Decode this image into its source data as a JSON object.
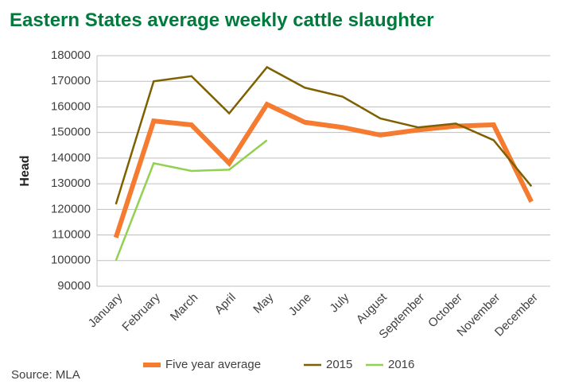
{
  "chart_data": {
    "type": "line",
    "title": "Eastern States average weekly cattle slaughter",
    "y_label": "Head",
    "source": "Source: MLA",
    "categories": [
      "January",
      "February",
      "March",
      "April",
      "May",
      "June",
      "July",
      "August",
      "September",
      "October",
      "November",
      "December"
    ],
    "series": [
      {
        "name": "Five year average",
        "color": "#f47b30",
        "values": [
          109000,
          154500,
          153000,
          138000,
          161000,
          154000,
          152000,
          149000,
          151000,
          152500,
          153000,
          123000
        ]
      },
      {
        "name": "2015",
        "color": "#7f6000",
        "values": [
          122000,
          170000,
          172000,
          157500,
          175500,
          167500,
          164000,
          155500,
          152000,
          153500,
          147000,
          129000
        ]
      },
      {
        "name": "2016",
        "color": "#92d050",
        "values": [
          100000,
          138000,
          135000,
          135500,
          147000,
          null,
          null,
          null,
          null,
          null,
          null,
          null
        ]
      }
    ],
    "ylim": [
      90000,
      180000
    ],
    "yticks": [
      90000,
      100000,
      110000,
      120000,
      130000,
      140000,
      150000,
      160000,
      170000,
      180000
    ],
    "grid": true,
    "legend": "bottom"
  }
}
